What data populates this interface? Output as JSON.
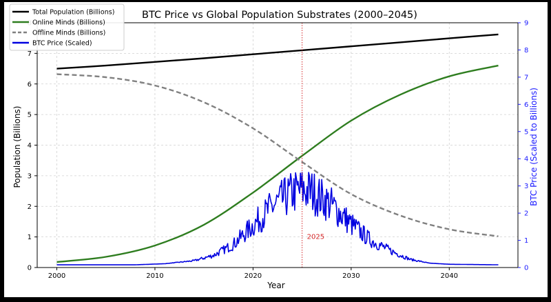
{
  "chart_data": {
    "type": "line",
    "title": "BTC Price vs Global Population Substrates (2000–2045)",
    "xlabel": "Year",
    "ylabel": "Population (Billions)",
    "y2label": "BTC Price (Scaled to Billions)",
    "xlim": [
      1998,
      2047
    ],
    "ylim": [
      0,
      8
    ],
    "y2lim": [
      0,
      9
    ],
    "xticks": [
      2000,
      2010,
      2020,
      2030,
      2040
    ],
    "yticks": [
      0,
      1,
      2,
      3,
      4,
      5,
      6,
      7,
      8
    ],
    "y2ticks": [
      0,
      1,
      2,
      3,
      4,
      5,
      6,
      7,
      8,
      9
    ],
    "grid": true,
    "legend_position": "top-left",
    "annotation": {
      "x": 2025,
      "label": "2025",
      "label_y": 1.0,
      "color": "#d62728"
    },
    "x": [
      2000,
      2005,
      2010,
      2015,
      2020,
      2025,
      2030,
      2035,
      2040,
      2045
    ],
    "series": [
      {
        "name": "Total Population (Billions)",
        "color": "#000000",
        "style": "solid",
        "values": [
          6.5,
          6.6,
          6.72,
          6.84,
          6.97,
          7.1,
          7.23,
          7.36,
          7.49,
          7.62
        ]
      },
      {
        "name": "Online Minds (Billions)",
        "color": "#2e7d1f",
        "style": "solid",
        "values": [
          0.18,
          0.35,
          0.72,
          1.4,
          2.45,
          3.65,
          4.8,
          5.65,
          6.25,
          6.6
        ]
      },
      {
        "name": "Offline Minds (Billions)",
        "color": "#808080",
        "style": "dashed",
        "values": [
          6.32,
          6.22,
          5.95,
          5.4,
          4.55,
          3.45,
          2.4,
          1.7,
          1.25,
          1.02
        ]
      },
      {
        "name": "BTC Price (Scaled)",
        "color": "#0000e0",
        "style": "solid",
        "axis": "right",
        "x": [
          2000,
          2008,
          2011,
          2014,
          2016,
          2018,
          2020,
          2022,
          2024,
          2025,
          2026,
          2028,
          2030,
          2032,
          2034,
          2036,
          2038,
          2040,
          2045
        ],
        "values": [
          0.1,
          0.1,
          0.14,
          0.25,
          0.45,
          0.85,
          1.55,
          2.25,
          2.75,
          2.85,
          2.8,
          2.3,
          1.6,
          1.0,
          0.62,
          0.3,
          0.16,
          0.12,
          0.1
        ]
      }
    ]
  }
}
